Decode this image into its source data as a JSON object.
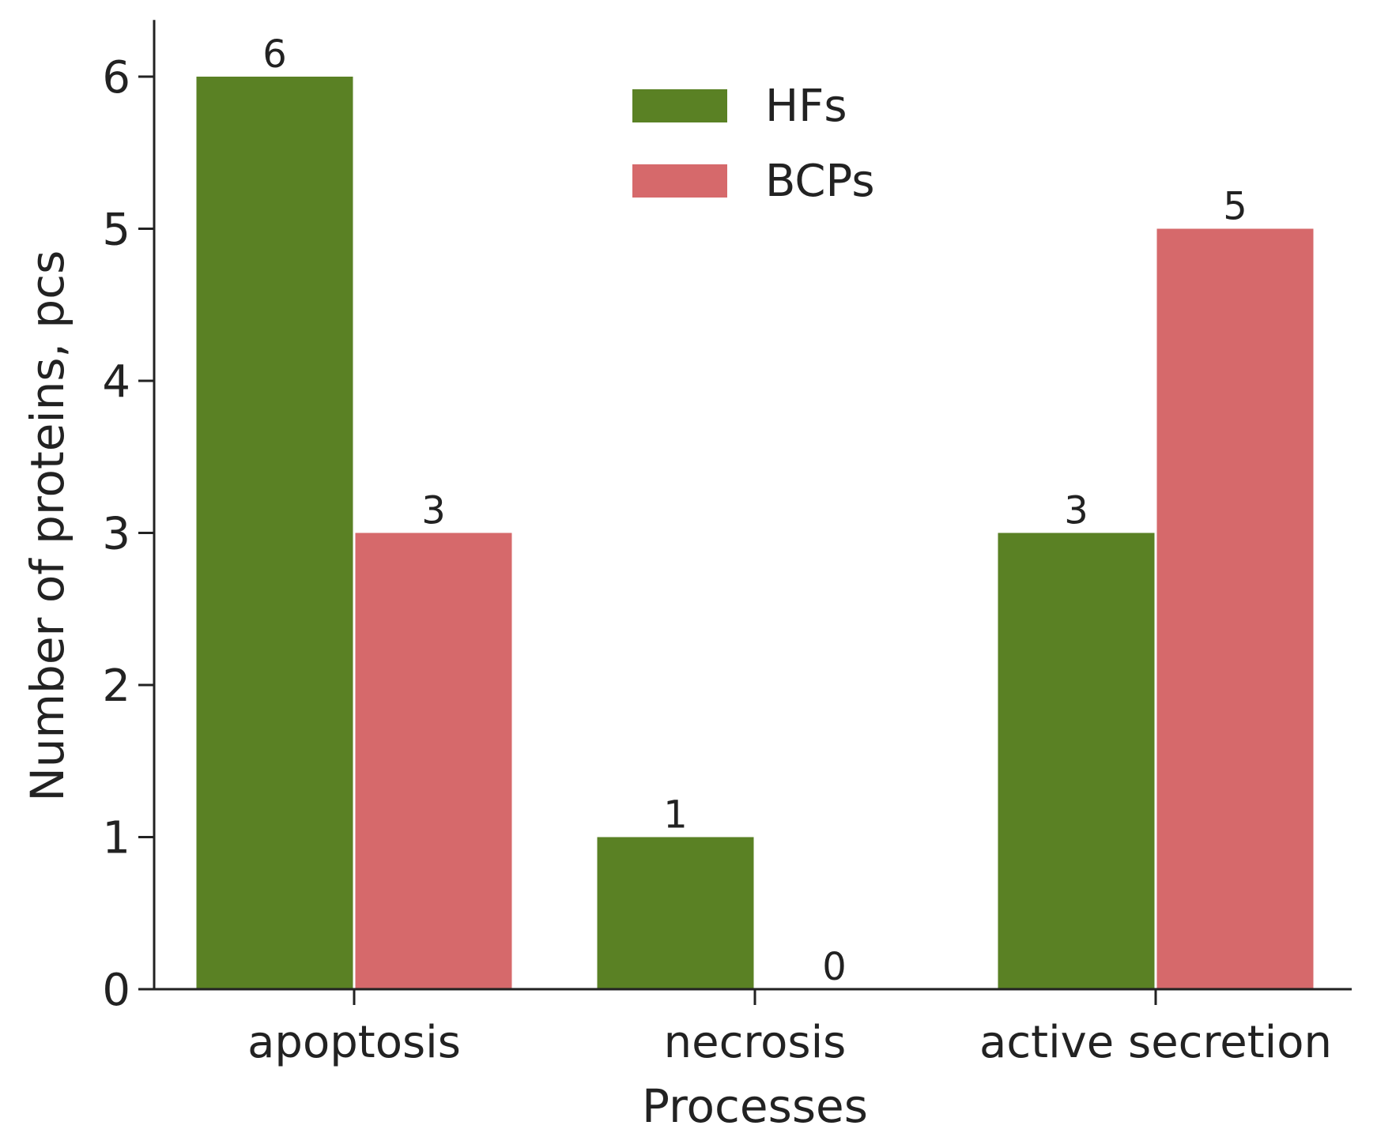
{
  "chart_data": {
    "type": "bar",
    "title": "",
    "xlabel": "Processes",
    "ylabel": "Number of proteins, pcs",
    "categories": [
      "apoptosis",
      "necrosis",
      "active secretion"
    ],
    "series": [
      {
        "name": "HFs",
        "color": "#5a8124",
        "values": [
          6,
          1,
          3
        ]
      },
      {
        "name": "BCPs",
        "color": "#d6696b",
        "values": [
          3,
          0,
          5
        ]
      }
    ],
    "ylim": [
      0,
      6.3
    ],
    "yticks": [
      0,
      1,
      2,
      3,
      4,
      5,
      6
    ],
    "grid": false,
    "legend_position": "top-center",
    "data_labels": true
  }
}
